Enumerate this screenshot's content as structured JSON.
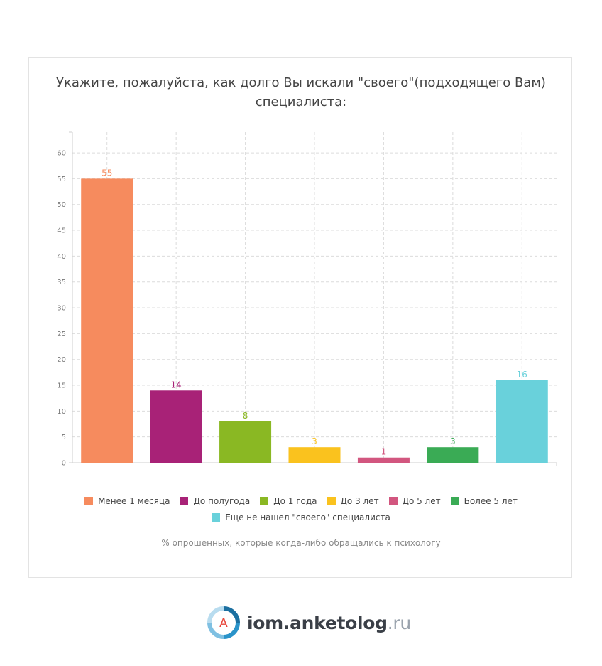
{
  "chart_data": {
    "type": "bar",
    "title": "Укажите, пожалуйста, как долго Вы искали \"своего\"(подходящего Вам) специалиста:",
    "categories": [
      "Менее 1 месяца",
      "До полугода",
      "До 1 года",
      "До 3 лет",
      "До 5 лет",
      "Более 5 лет",
      "Еще не нашел \"своего\" специалиста"
    ],
    "values": [
      55,
      14,
      8,
      3,
      1,
      3,
      16
    ],
    "colors": [
      "#F68B5E",
      "#A82277",
      "#8AB823",
      "#FAC21E",
      "#D2567F",
      "#3AAB55",
      "#69D1DB"
    ],
    "ylim": [
      0,
      64
    ],
    "yticks": [
      0,
      5,
      10,
      15,
      20,
      25,
      30,
      35,
      40,
      45,
      50,
      55,
      60
    ],
    "xlabel": "% опрошенных, которые когда-либо обращались к психологу",
    "ylabel": "",
    "grid": true,
    "legend_position": "bottom"
  },
  "legend": {
    "row1": [
      {
        "label": "Менее 1 месяца",
        "color": "#F68B5E"
      },
      {
        "label": "До полугода",
        "color": "#A82277"
      },
      {
        "label": "До 1 года",
        "color": "#8AB823"
      },
      {
        "label": "До 3 лет",
        "color": "#FAC21E"
      },
      {
        "label": "До 5 лет",
        "color": "#D2567F"
      },
      {
        "label": "Более 5 лет",
        "color": "#3AAB55"
      }
    ],
    "row2": [
      {
        "label": "Еще не нашел \"своего\" специалиста",
        "color": "#69D1DB"
      }
    ]
  },
  "brand": {
    "logo_letter": "A",
    "name": "iom.anketolog",
    "suffix": ".ru"
  }
}
